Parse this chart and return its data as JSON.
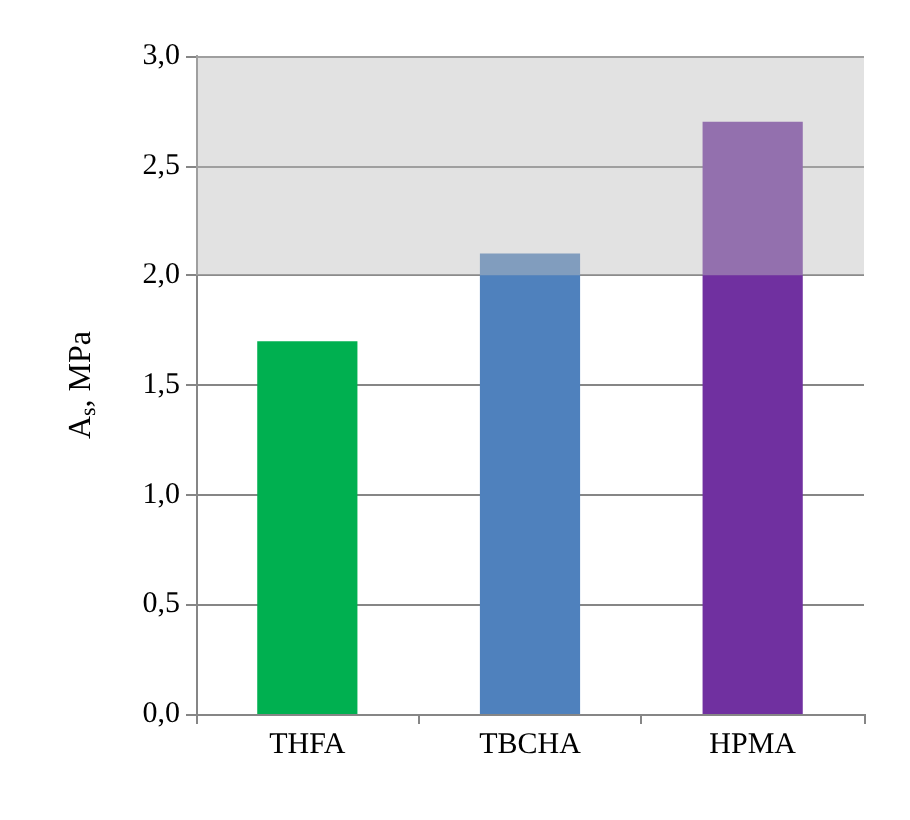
{
  "chart_data": {
    "type": "bar",
    "ylabel": "A$_{s}$, MPa",
    "categories": [
      "THFA",
      "TBCHA",
      "HPMA"
    ],
    "values": [
      1.7,
      2.1,
      2.7
    ],
    "colors": [
      "#00b050",
      "#4f81bd",
      "#7030a0"
    ],
    "ylim": [
      0,
      3
    ],
    "yticks": [
      {
        "value": 0,
        "label": "0,0"
      },
      {
        "value": 0.5,
        "label": "0,5"
      },
      {
        "value": 1,
        "label": "1,0"
      },
      {
        "value": 1.5,
        "label": "1,5"
      },
      {
        "value": 2,
        "label": "2,0"
      },
      {
        "value": 2.5,
        "label": "2,5"
      },
      {
        "value": 3,
        "label": "3,0"
      }
    ],
    "grid": "y",
    "bands": [
      {
        "axis": "y",
        "from": 2,
        "to": 3,
        "color": "#bfbfbf"
      }
    ]
  }
}
